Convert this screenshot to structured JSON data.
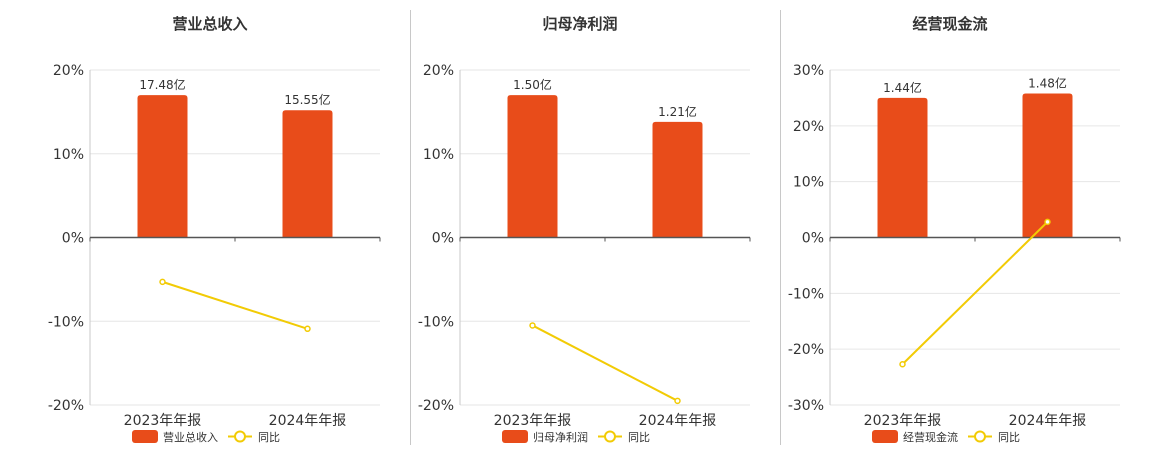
{
  "chart_data": [
    {
      "type": "bar",
      "title": "营业总收入",
      "categories": [
        "2023年年报",
        "2024年年报"
      ],
      "ylim": [
        -20,
        20
      ],
      "yticks": [
        20,
        10,
        0,
        -10,
        -20
      ],
      "ytick_labels": [
        "20%",
        "10%",
        "0%",
        "-10%",
        "-20%"
      ],
      "grid": true,
      "legend_position": "bottom",
      "series": [
        {
          "name": "营业总收入",
          "kind": "bar",
          "color": "#E84C1A",
          "values": [
            17.0,
            15.2
          ],
          "labels": [
            "17.48亿",
            "15.55亿"
          ]
        },
        {
          "name": "同比",
          "kind": "line",
          "color": "#F2CB05",
          "values": [
            -5.3,
            -10.9
          ]
        }
      ]
    },
    {
      "type": "bar",
      "title": "归母净利润",
      "categories": [
        "2023年年报",
        "2024年年报"
      ],
      "ylim": [
        -20,
        20
      ],
      "yticks": [
        20,
        10,
        0,
        -10,
        -20
      ],
      "ytick_labels": [
        "20%",
        "10%",
        "0%",
        "-10%",
        "-20%"
      ],
      "grid": true,
      "legend_position": "bottom",
      "series": [
        {
          "name": "归母净利润",
          "kind": "bar",
          "color": "#E84C1A",
          "values": [
            17.0,
            13.8
          ],
          "labels": [
            "1.50亿",
            "1.21亿"
          ]
        },
        {
          "name": "同比",
          "kind": "line",
          "color": "#F2CB05",
          "values": [
            -10.5,
            -19.5
          ]
        }
      ]
    },
    {
      "type": "bar",
      "title": "经营现金流",
      "categories": [
        "2023年年报",
        "2024年年报"
      ],
      "ylim": [
        -30,
        30
      ],
      "yticks": [
        30,
        20,
        10,
        0,
        -10,
        -20,
        -30
      ],
      "ytick_labels": [
        "30%",
        "20%",
        "10%",
        "0%",
        "-10%",
        "-20%",
        "-30%"
      ],
      "grid": true,
      "legend_position": "bottom",
      "series": [
        {
          "name": "经营现金流",
          "kind": "bar",
          "color": "#E84C1A",
          "values": [
            25.0,
            25.8
          ],
          "labels": [
            "1.44亿",
            "1.48亿"
          ]
        },
        {
          "name": "同比",
          "kind": "line",
          "color": "#F2CB05",
          "values": [
            -22.7,
            2.8
          ]
        }
      ]
    }
  ]
}
